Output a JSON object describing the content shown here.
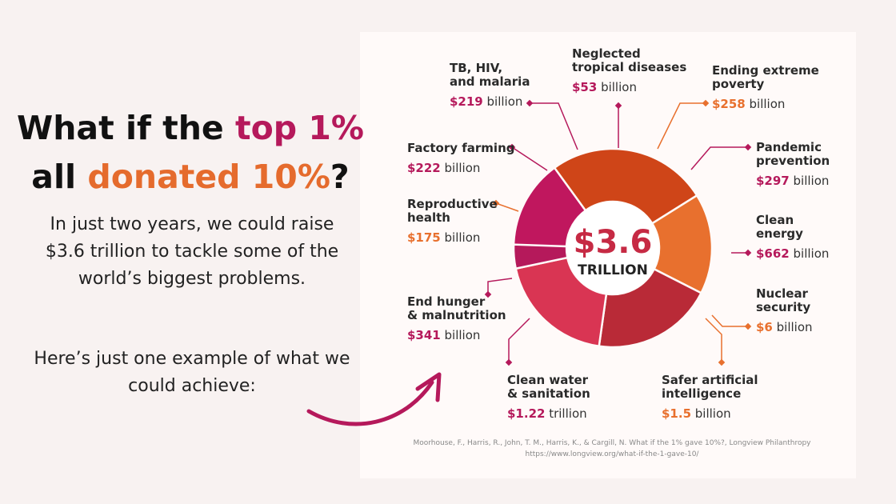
{
  "headline": {
    "part1": "What if the ",
    "highlight1": "top 1%",
    "part2": "all ",
    "highlight2": "donated 10%",
    "part3": "?"
  },
  "body": {
    "paragraph1": "In just two years, we could raise $3.6 trillion to tackle some of the world’s biggest problems.",
    "paragraph2": "Here’s just one example of what we could achieve:"
  },
  "colors": {
    "accent_pink": "#b5195b",
    "accent_orange": "#e56b2d",
    "donut_dark_red": "#b92a37",
    "donut_red": "#d93553",
    "donut_magenta": "#c0175e",
    "donut_orange": "#e8702e",
    "donut_rust": "#cf4518"
  },
  "chart_data": {
    "type": "pie",
    "center": {
      "value": "$3.6",
      "label": "TRILLION"
    },
    "unit_note": "values in billions of US dollars",
    "slices": [
      {
        "name": "Ending extreme poverty",
        "value": 258,
        "amount": "$258",
        "unit": "billion",
        "color": "#e8702e"
      },
      {
        "name": "Pandemic prevention",
        "value": 297,
        "amount": "$297",
        "unit": "billion",
        "color": "#b92a37"
      },
      {
        "name": "Clean energy",
        "value": 662,
        "amount": "$662",
        "unit": "billion",
        "color": "#d93553"
      },
      {
        "name": "Nuclear security",
        "value": 6,
        "amount": "$6",
        "unit": "billion",
        "color": "#e8702e"
      },
      {
        "name": "Safer artificial intelligence",
        "value": 1.5,
        "amount": "$1.5",
        "unit": "billion",
        "color": "#e8702e"
      },
      {
        "name": "Clean water & sanitation",
        "value": 1220,
        "amount": "$1.22",
        "unit": "trillion",
        "color": "#c0175e"
      },
      {
        "name": "End hunger & malnutrition",
        "value": 341,
        "amount": "$341",
        "unit": "billion",
        "color": "#cf4518"
      },
      {
        "name": "Reproductive health",
        "value": 175,
        "amount": "$175",
        "unit": "billion",
        "color": "#e8702e"
      },
      {
        "name": "Factory farming",
        "value": 222,
        "amount": "$222",
        "unit": "billion",
        "color": "#b92a37"
      },
      {
        "name": "TB, HIV, and malaria",
        "value": 219,
        "amount": "$219",
        "unit": "billion",
        "color": "#d93553"
      },
      {
        "name": "Neglected tropical diseases",
        "value": 53,
        "amount": "$53",
        "unit": "billion",
        "color": "#b5195b"
      }
    ]
  },
  "source": {
    "citation": "Moorhouse, F., Harris, R., John, T. M., Harris, K., & Cargill, N. What if the 1% gave 10%?, Longview Philanthropy",
    "url": "https://www.longview.org/what-if-the-1-gave-10/"
  }
}
